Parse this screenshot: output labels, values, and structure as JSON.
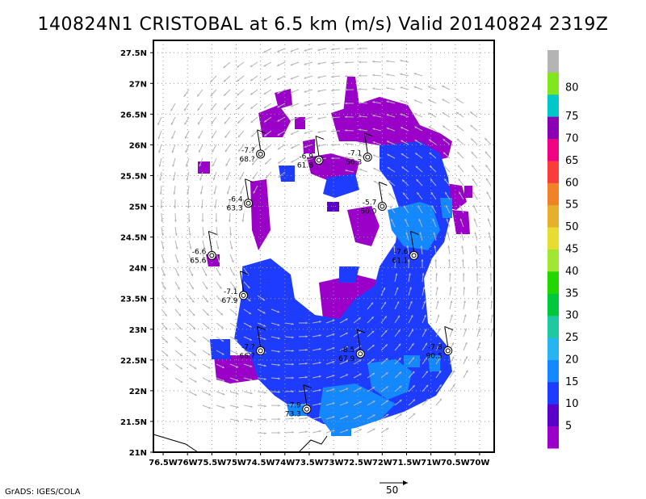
{
  "title": "140824N1 CRISTOBAL at 6.5 km (m/s) Valid 20140824 2319Z",
  "footer_left": "GrADS: IGES/COLA",
  "reference_vector": {
    "value_label": "50"
  },
  "map": {
    "lon_ticks": [
      "76.5W",
      "76W",
      "75.5W",
      "75W",
      "74.5W",
      "74W",
      "73.5W",
      "73W",
      "72.5W",
      "72W",
      "71.5W",
      "71W",
      "70.5W",
      "70W"
    ],
    "lat_ticks": [
      "21N",
      "21.5N",
      "22N",
      "22.5N",
      "23N",
      "23.5N",
      "24N",
      "24.5N",
      "25N",
      "25.5N",
      "26N",
      "26.5N",
      "27N",
      "27.5N"
    ],
    "lon_range": [
      -76.7,
      -69.7
    ],
    "lat_range": [
      21.0,
      27.7
    ],
    "grid": "dotted"
  },
  "colorbar": {
    "labels": [
      "5",
      "10",
      "15",
      "20",
      "25",
      "30",
      "35",
      "40",
      "45",
      "50",
      "55",
      "60",
      "65",
      "70",
      "75",
      "80"
    ],
    "colors": [
      "#9b00c8",
      "#5a00c8",
      "#1e3cff",
      "#1488ff",
      "#28b4f0",
      "#1ec8a0",
      "#00c83c",
      "#22d700",
      "#a0e632",
      "#e6dc32",
      "#e6af2d",
      "#f08228",
      "#fa3c3c",
      "#f00082",
      "#8c00b4",
      "#00c8c8",
      "#82e61e",
      "#b4b4b4"
    ]
  },
  "observations": [
    {
      "lon": -74.5,
      "lat": 25.85,
      "temp": "-7.?",
      "rh": "68.?"
    },
    {
      "lon": -73.3,
      "lat": 25.75,
      "temp": "-6.9",
      "rh": "61.8"
    },
    {
      "lon": -72.3,
      "lat": 25.8,
      "temp": "-7.1",
      "rh": "66.3"
    },
    {
      "lon": -74.75,
      "lat": 25.05,
      "temp": "-6.4",
      "rh": "63.3"
    },
    {
      "lon": -72.0,
      "lat": 25.0,
      "temp": "-5.7",
      "rh": "60.0"
    },
    {
      "lon": -75.5,
      "lat": 24.2,
      "temp": "-6.6",
      "rh": "65.6"
    },
    {
      "lon": -71.35,
      "lat": 24.2,
      "temp": "-7.6",
      "rh": "61.1"
    },
    {
      "lon": -74.85,
      "lat": 23.55,
      "temp": "-7.1",
      "rh": "67.9"
    },
    {
      "lon": -74.5,
      "lat": 22.65,
      "temp": "-7.?",
      "rh": "66.?"
    },
    {
      "lon": -72.45,
      "lat": 22.6,
      "temp": "-8.5",
      "rh": "67.9"
    },
    {
      "lon": -70.65,
      "lat": 22.65,
      "temp": "-7.8",
      "rh": "90.5"
    },
    {
      "lon": -73.55,
      "lat": 21.7,
      "temp": "-7.9",
      "rh": "73.3"
    }
  ]
}
